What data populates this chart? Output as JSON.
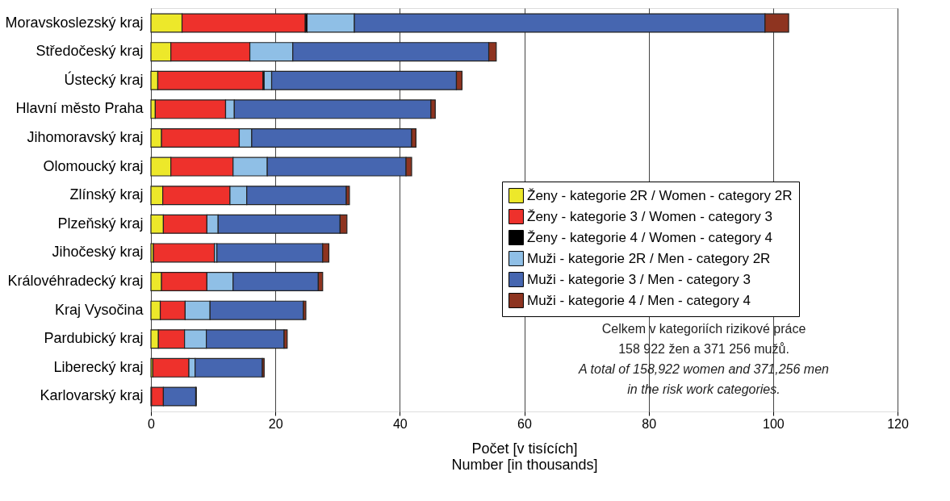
{
  "chart_data": {
    "type": "bar",
    "orientation": "horizontal",
    "stacked": true,
    "xlabel": [
      "Počet [v tisících]",
      "Number [in thousands]"
    ],
    "categories": [
      "Moravskoslezský kraj",
      "Středočeský kraj",
      "Ústecký kraj",
      "Hlavní město Praha",
      "Jihomoravský kraj",
      "Olomoucký kraj",
      "Zlínský kraj",
      "Plzeňský kraj",
      "Jihočeský kraj",
      "Královéhradecký kraj",
      "Kraj Vysočina",
      "Pardubický kraj",
      "Liberecký kraj",
      "Karlovarský kraj"
    ],
    "series": [
      {
        "name": "Ženy - kategorie 2R / Women - category 2R",
        "color": "#ede82a",
        "values": [
          5.0,
          3.2,
          1.1,
          0.7,
          1.7,
          3.2,
          1.9,
          2.0,
          0.4,
          1.7,
          1.5,
          1.2,
          0.3,
          0.1
        ]
      },
      {
        "name": "Ženy - kategorie 3 / Women - category 3",
        "color": "#ee312c",
        "values": [
          19.8,
          12.7,
          16.9,
          11.3,
          12.5,
          10.0,
          10.8,
          7.0,
          9.8,
          7.3,
          4.0,
          4.2,
          5.8,
          1.9
        ]
      },
      {
        "name": "Ženy - kategorie 4 / Women - category 4",
        "color": "#000000",
        "values": [
          0.3,
          0,
          0.2,
          0,
          0,
          0,
          0,
          0,
          0,
          0,
          0,
          0,
          0,
          0
        ]
      },
      {
        "name": "Muži - kategorie 2R / Men - category 2R",
        "color": "#8fbfe6",
        "values": [
          7.6,
          6.9,
          1.2,
          1.4,
          2.0,
          5.5,
          2.7,
          1.8,
          0.4,
          4.2,
          4.0,
          3.5,
          1.0,
          null
        ]
      },
      {
        "name": "Muži - kategorie 3 / Men - category 3",
        "color": "#4666b0",
        "values": [
          66.0,
          31.5,
          29.7,
          31.6,
          25.7,
          22.3,
          16.0,
          19.6,
          17.0,
          13.7,
          15.0,
          12.5,
          10.8,
          5.2
        ]
      },
      {
        "name": "Muži - kategorie 4 / Men - category 4",
        "color": "#8e3420",
        "values": [
          3.8,
          1.2,
          0.9,
          0.7,
          0.7,
          0.9,
          0.5,
          1.1,
          1.0,
          0.7,
          0.4,
          0.5,
          0.3,
          0.1
        ]
      }
    ],
    "xlim": [
      0,
      120
    ],
    "xticks": [
      0,
      20,
      40,
      60,
      80,
      100,
      120
    ],
    "grid": "x",
    "legend": "right",
    "annotations": [
      "Celkem v kategoriích rizikové práce",
      "158 922 žen a 371 256 mužů.",
      "A total of 158,922  women and 371,256 men",
      "in the risk work categories."
    ]
  }
}
